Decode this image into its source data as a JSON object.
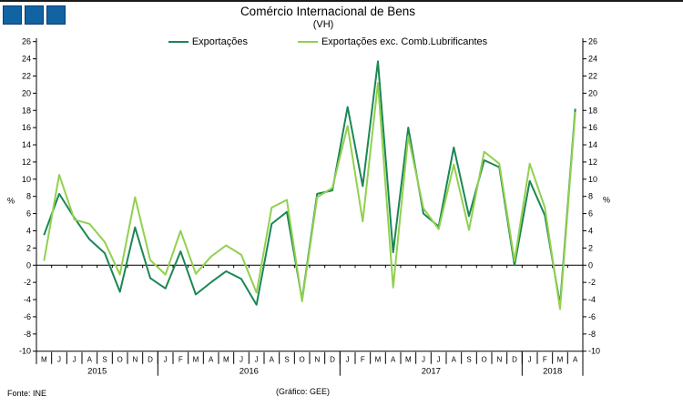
{
  "header": {
    "title": "Comércio Internacional de Bens",
    "subtitle": "(VH)"
  },
  "footer": {
    "source": "Fonte: INE",
    "credit": "(Gráfico: GEE)"
  },
  "colors": {
    "logo_blue": "#1263a2",
    "series_dark_green": "#1a8754",
    "series_light_green": "#92d050",
    "axis_black": "#000000"
  },
  "chart_data": {
    "type": "line",
    "title": "Comércio Internacional de Bens",
    "subtitle": "(VH)",
    "unit_label": "%",
    "ylim": [
      -10,
      26
    ],
    "ytick_step": 2,
    "yticks": [
      26,
      24,
      22,
      20,
      18,
      16,
      14,
      12,
      10,
      8,
      6,
      4,
      2,
      0,
      -2,
      -4,
      -6,
      -8,
      -10
    ],
    "grid": false,
    "legend_position": "top",
    "x_months": [
      "M",
      "J",
      "J",
      "A",
      "S",
      "O",
      "N",
      "D",
      "J",
      "F",
      "M",
      "A",
      "M",
      "J",
      "J",
      "A",
      "S",
      "O",
      "N",
      "D",
      "J",
      "F",
      "M",
      "A",
      "M",
      "J",
      "J",
      "A",
      "S",
      "O",
      "N",
      "D",
      "J",
      "F",
      "M",
      "A"
    ],
    "year_groups": [
      {
        "label": "2015",
        "months": 8
      },
      {
        "label": "2016",
        "months": 12
      },
      {
        "label": "2017",
        "months": 12
      },
      {
        "label": "2018",
        "months": 4
      }
    ],
    "series": [
      {
        "name": "Exportações",
        "color": "#1a8754",
        "values": [
          3.5,
          8.3,
          5.5,
          3.0,
          1.4,
          -3.1,
          4.4,
          -1.5,
          -2.7,
          1.6,
          -3.4,
          -2.0,
          -0.7,
          -1.6,
          -4.6,
          4.8,
          6.2,
          -4.0,
          8.3,
          8.7,
          18.4,
          9.2,
          23.7,
          1.5,
          16.0,
          6.0,
          4.5,
          13.7,
          5.7,
          12.2,
          11.4,
          0.0,
          9.8,
          5.8,
          -4.6,
          18.2
        ]
      },
      {
        "name": "Exportações exc. Comb.Lubrificantes",
        "color": "#92d050",
        "values": [
          0.5,
          10.5,
          5.3,
          4.8,
          2.7,
          -1.1,
          7.9,
          0.6,
          -1.1,
          4.0,
          -1.0,
          1.0,
          2.3,
          1.2,
          -3.2,
          6.7,
          7.6,
          -4.2,
          7.9,
          9.0,
          16.2,
          5.1,
          21.2,
          -2.6,
          15.0,
          6.6,
          4.2,
          11.7,
          4.1,
          13.2,
          11.8,
          0.5,
          11.8,
          6.7,
          -5.1,
          17.8
        ]
      }
    ]
  }
}
